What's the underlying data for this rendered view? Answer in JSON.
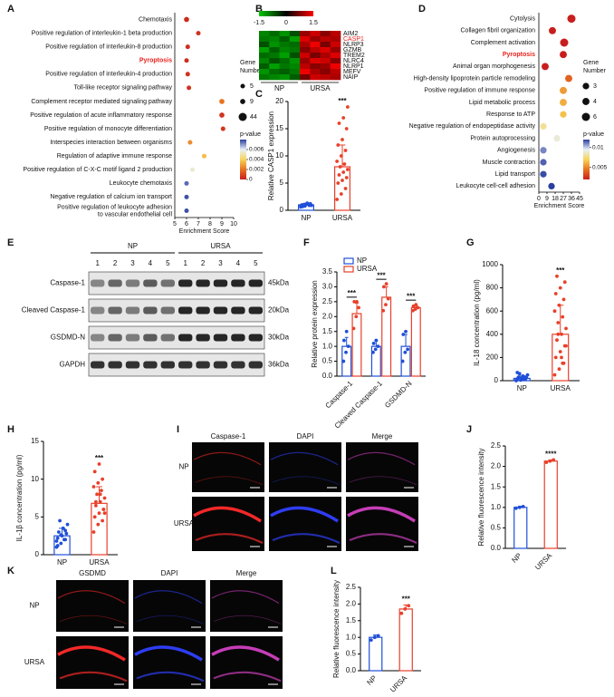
{
  "panel_labels": [
    "A",
    "B",
    "C",
    "D",
    "E",
    "F",
    "G",
    "H",
    "I",
    "J",
    "K",
    "L"
  ],
  "A": {
    "type": "dot",
    "terms": [
      "Chemotaxis",
      "Positive regulation of interleukin-1 beta production",
      "Positive regulation of interleukin-8 production",
      "Pyroptosis",
      "Positive regulation of interleukin-4 production",
      "Toll-like receptor signaling pathway",
      "Complement receptor mediated signaling pathway",
      "Positive regulation of acute inflammatory response",
      "Positive regulation of monocyte differentiation",
      "Interspecies interaction between organisms",
      "Regulation of adaptive immune response",
      "Positive regulation of C-X-C motif ligand 2 production",
      "Leukocyte chemotaxis",
      "Negative regulation of calcium ion transport",
      [
        "Positive regulation of leukocyte adhesion",
        "to vascular endothelial cell"
      ]
    ],
    "x": [
      6,
      7,
      6.1,
      6,
      6.1,
      6.2,
      9,
      9,
      9.1,
      6.3,
      7.5,
      6.5,
      6,
      6,
      6
    ],
    "gene_number": [
      9,
      5,
      5,
      5,
      5,
      5,
      9,
      9,
      5,
      5,
      5,
      5,
      5,
      5,
      5
    ],
    "pvalues": [
      0.0003,
      0.0005,
      0.0004,
      0.0003,
      0.0005,
      0.0005,
      0.002,
      0.0005,
      0.0006,
      0.0025,
      0.0035,
      0.0055,
      0.0075,
      0.0078,
      0.0078
    ],
    "xlim": [
      5,
      10
    ],
    "xticks": [
      5,
      6,
      7,
      8,
      9,
      10
    ],
    "xlabel": "Enrichment Score",
    "highlight": {
      "index": 3,
      "color": "#e8231e"
    },
    "size_legend": {
      "title": [
        "Gene",
        "Number"
      ],
      "values": [
        5,
        9,
        44
      ]
    },
    "colorbar": {
      "title": "p-value",
      "clim": [
        0,
        0.008
      ],
      "ticks": [
        0.006,
        0.004,
        0.002,
        0
      ],
      "colors": [
        "#2b3f9e",
        "#e8f0f8",
        "#f7d45a",
        "#e8731f",
        "#c81e1e"
      ]
    }
  },
  "B": {
    "type": "heatmap",
    "genes": [
      "AIM2",
      "CASP1",
      "NLRP3",
      "GZMB",
      "TREM2",
      "NLRC4",
      "NLRP1",
      "MEFV",
      "NAIP"
    ],
    "highlight": {
      "index": 1,
      "color": "#e8231e"
    },
    "groups": [
      "NP",
      "URSA"
    ],
    "values": [
      [
        -1,
        -0.8,
        -1.1,
        -0.6,
        0.9,
        1.2,
        0.8,
        1.1
      ],
      [
        -0.9,
        -1,
        -0.7,
        -1.2,
        1.3,
        0.9,
        1.1,
        1.0
      ],
      [
        -0.6,
        -1.1,
        -0.9,
        -0.8,
        1.0,
        1.4,
        0.7,
        1.2
      ],
      [
        -1.2,
        -0.7,
        -1.0,
        -0.9,
        0.8,
        1.1,
        1.3,
        0.9
      ],
      [
        -0.8,
        -0.9,
        -1.2,
        -0.6,
        1.2,
        0.7,
        1.0,
        1.3
      ],
      [
        -1.0,
        -0.6,
        -0.8,
        -1.1,
        0.9,
        1.3,
        1.2,
        0.8
      ],
      [
        -0.7,
        -1.2,
        -0.9,
        -1.0,
        1.1,
        0.8,
        0.9,
        1.4
      ],
      [
        -1.1,
        -0.8,
        -0.7,
        -0.9,
        1.4,
        1.0,
        0.8,
        1.1
      ],
      [
        -0.9,
        -1.0,
        -1.1,
        -0.7,
        0.7,
        1.2,
        1.1,
        1.0
      ]
    ],
    "colorbar": {
      "clim": [
        -1.5,
        1.5
      ],
      "ticks": [
        -1.5,
        0,
        1.5
      ],
      "colors": [
        "#00c800",
        "#000000",
        "#ff0000"
      ]
    }
  },
  "C": {
    "type": "bar",
    "ylabel": "Relative CASP1 expression",
    "categories": [
      "NP",
      "URSA"
    ],
    "values": [
      1,
      8
    ],
    "errors": [
      0.3,
      4
    ],
    "points": [
      [
        0.6,
        0.8,
        0.9,
        1.0,
        1.1,
        1.2,
        0.7,
        1.3,
        0.9,
        1.0,
        1.1,
        0.8
      ],
      [
        2,
        3,
        4,
        5,
        5.5,
        6,
        6.5,
        7,
        7.5,
        8,
        8.5,
        9,
        10,
        11,
        12,
        13,
        15,
        16,
        17,
        19
      ]
    ],
    "colors": [
      "#1f4fd8",
      "#e8402a"
    ],
    "ylim": [
      0,
      20
    ],
    "yticks": [
      0,
      5,
      10,
      15,
      20
    ],
    "annotation": "***",
    "rotate_labels": false
  },
  "D": {
    "type": "dot",
    "terms": [
      "Cytolysis",
      "Collagen fibril organization",
      "Complement activation",
      "Pyroptosis",
      "Animal organ morphogenesis",
      "High-density lipoprotein particle remodeling",
      "Positive regulation of immune response",
      "Lipid metabolic process",
      "Response to ATP",
      "Negative regulation of endopeptidase activity",
      "Protein autoprocessing",
      "Angiogenesis",
      "Muscle contraction",
      "Lipid transport",
      "Leukocyte cell-cell adhesion"
    ],
    "x": [
      36,
      15,
      28,
      27,
      7,
      33,
      27,
      27,
      27,
      5,
      20,
      5,
      5,
      5,
      14
    ],
    "gene_number": [
      6,
      4,
      6,
      4,
      4,
      4,
      4,
      4,
      3,
      3,
      3,
      3,
      3,
      3,
      3
    ],
    "pvalues": [
      0.001,
      0.0012,
      0.0015,
      0.0013,
      0.0014,
      0.004,
      0.0055,
      0.006,
      0.0065,
      0.008,
      0.009,
      0.011,
      0.0115,
      0.0118,
      0.012
    ],
    "xlim": [
      0,
      45
    ],
    "xticks": [
      0,
      9,
      18,
      27,
      36,
      45
    ],
    "xlabel": "Enrichment Score",
    "highlight": {
      "index": 3,
      "color": "#e8231e"
    },
    "size_legend": {
      "title": [
        "Gene",
        "Number"
      ],
      "values": [
        3,
        4,
        6
      ]
    },
    "colorbar": {
      "title": "p-value",
      "clim": [
        0.002,
        0.012
      ],
      "ticks": [
        0.01,
        0.005
      ],
      "colors": [
        "#2b3f9e",
        "#e8f0f8",
        "#f7d45a",
        "#e8731f",
        "#c81e1e"
      ]
    }
  },
  "E": {
    "type": "blot",
    "groups": [
      "NP",
      "URSA"
    ],
    "lanes": [
      "1",
      "2",
      "3",
      "4",
      "5"
    ],
    "rows": [
      "Caspase-1",
      "Cleaved Caspase-1",
      "GSDMD-N",
      "GAPDH"
    ],
    "sizes": [
      "45kDa",
      "20kDa",
      "30kDa",
      "36kDa"
    ]
  },
  "F": {
    "type": "bar",
    "ylabel": "Relative protein expression",
    "categories": [
      "Caspase-1",
      "Cleaved Caspase-1",
      "GSDMD-N"
    ],
    "series": [
      {
        "name": "NP",
        "color": "#1f4fd8",
        "values": [
          1,
          1,
          1
        ],
        "errors": [
          0.3,
          0.2,
          0.4
        ],
        "points": [
          [
            0.5,
            0.8,
            1.0,
            1.2,
            1.5
          ],
          [
            0.8,
            0.9,
            1.0,
            1.1,
            1.2
          ],
          [
            0.5,
            0.8,
            0.9,
            1.4,
            1.5
          ]
        ]
      },
      {
        "name": "URSA",
        "color": "#e8402a",
        "values": [
          2.1,
          2.65,
          2.3
        ],
        "errors": [
          0.35,
          0.35,
          0.08
        ],
        "points": [
          [
            1.6,
            2.0,
            2.3,
            2.5,
            2.5
          ],
          [
            2.2,
            2.4,
            2.6,
            3.0,
            3.1
          ],
          [
            2.2,
            2.25,
            2.3,
            2.35,
            2.4
          ]
        ]
      }
    ],
    "ylim": [
      0,
      3.5
    ],
    "yticks": [
      {
        "value": 0,
        "label": "0.0"
      },
      0.5,
      {
        "value": 1,
        "label": "1.0"
      },
      1.5,
      {
        "value": 2,
        "label": "2.0"
      },
      2.5,
      {
        "value": 3,
        "label": "3.0"
      },
      3.5
    ],
    "annotations": [
      "***",
      "***",
      "***"
    ],
    "rotate_labels": true
  },
  "G": {
    "type": "bar",
    "ylabel": "IL-18 concentration (pg/ml)",
    "categories": [
      "NP",
      "URSA"
    ],
    "values": [
      20,
      400
    ],
    "errors": [
      20,
      250
    ],
    "points": [
      [
        0,
        5,
        10,
        15,
        20,
        25,
        30,
        40,
        50,
        60,
        10,
        5,
        20,
        30,
        70
      ],
      [
        50,
        100,
        150,
        200,
        250,
        300,
        350,
        400,
        450,
        500,
        550,
        600,
        650,
        700,
        750,
        800,
        850,
        900,
        200,
        300,
        400,
        150
      ]
    ],
    "colors": [
      "#1f4fd8",
      "#e8402a"
    ],
    "ylim": [
      0,
      1000
    ],
    "yticks": [
      0,
      200,
      400,
      600,
      800,
      1000
    ],
    "annotation": "***",
    "rotate_labels": false
  },
  "H": {
    "type": "bar",
    "ylabel": "IL-1β concentration (pg/ml)",
    "categories": [
      "NP",
      "URSA"
    ],
    "values": [
      2.5,
      6.8
    ],
    "errors": [
      1,
      2.2
    ],
    "points": [
      [
        1,
        1.5,
        2,
        2.2,
        2.5,
        2.8,
        3,
        3.5,
        4,
        4.5,
        2,
        1.8,
        2.6,
        3.2,
        1.2
      ],
      [
        3,
        4,
        4.5,
        5,
        5.5,
        6,
        6.5,
        7,
        7.5,
        8,
        8.5,
        9,
        9.5,
        10,
        11,
        12,
        6,
        7,
        8,
        5.5
      ]
    ],
    "colors": [
      "#1f4fd8",
      "#e8402a"
    ],
    "ylim": [
      0,
      15
    ],
    "yticks": [
      0,
      5,
      10,
      15
    ],
    "annotation": "***",
    "rotate_labels": false
  },
  "I": {
    "type": "images",
    "columns": [
      "Caspase-1",
      "DAPI",
      "Merge"
    ],
    "rows": [
      "NP",
      "URSA"
    ],
    "channel_colors": [
      "#ff2a2a",
      "#3040ff",
      "#d040c0"
    ]
  },
  "J": {
    "type": "bar",
    "ylabel": "Relative fluorescence intensity",
    "categories": [
      "NP",
      "URSA"
    ],
    "values": [
      1.0,
      2.13
    ],
    "errors": [
      0.03,
      0.03
    ],
    "points": [
      [
        0.98,
        1.0,
        1.02
      ],
      [
        2.1,
        2.13,
        2.16
      ]
    ],
    "colors": [
      "#1f4fd8",
      "#e8402a"
    ],
    "ylim": [
      0,
      2.5
    ],
    "yticks": [
      {
        "value": 0,
        "label": "0.0"
      },
      0.5,
      {
        "value": 1,
        "label": "1.0"
      },
      1.5,
      {
        "value": 2,
        "label": "2.0"
      },
      2.5
    ],
    "annotation": "****",
    "rotate_labels": true
  },
  "K": {
    "type": "images",
    "columns": [
      "GSDMD",
      "DAPI",
      "Merge"
    ],
    "rows": [
      "NP",
      "URSA"
    ],
    "channel_colors": [
      "#ff2a2a",
      "#3040ff",
      "#d040c0"
    ]
  },
  "L": {
    "type": "bar",
    "ylabel": "Relative fluorescence intensity",
    "categories": [
      "NP",
      "URSA"
    ],
    "values": [
      1.0,
      1.85
    ],
    "errors": [
      0.07,
      0.12
    ],
    "points": [
      [
        0.92,
        1.0,
        1.05
      ],
      [
        1.72,
        1.85,
        1.95
      ]
    ],
    "colors": [
      "#1f4fd8",
      "#e8402a"
    ],
    "ylim": [
      0,
      2.5
    ],
    "yticks": [
      {
        "value": 0,
        "label": "0.0"
      },
      0.5,
      {
        "value": 1,
        "label": "1.0"
      },
      1.5,
      {
        "value": 2,
        "label": "2.0"
      },
      2.5
    ],
    "annotation": "***",
    "rotate_labels": true
  }
}
